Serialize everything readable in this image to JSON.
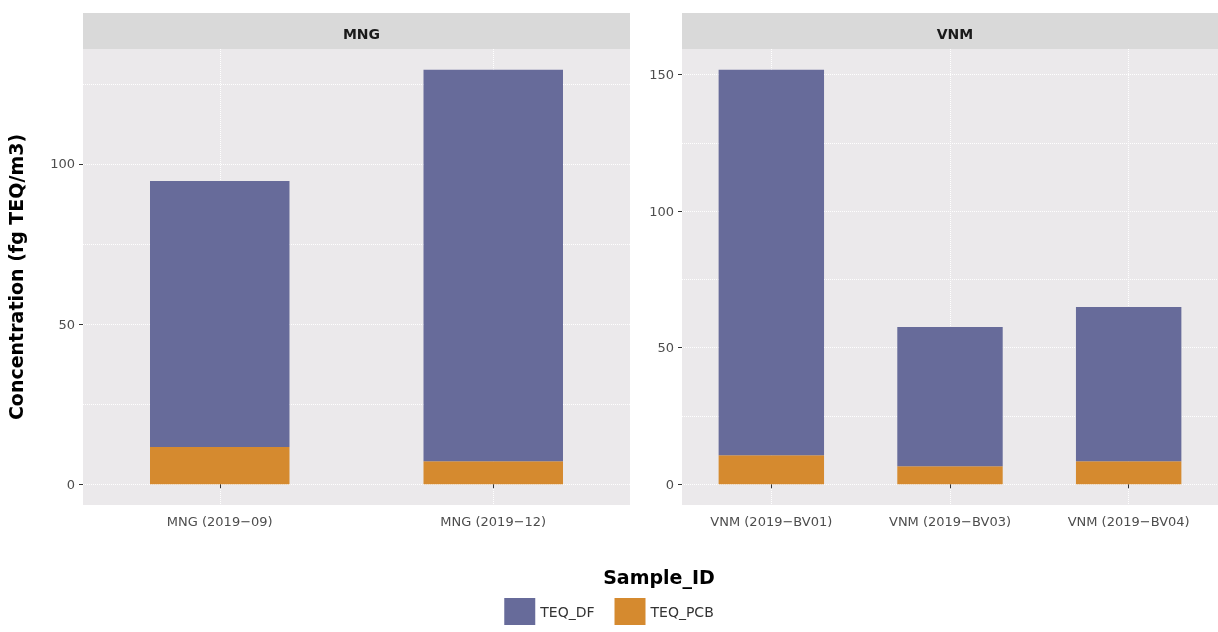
{
  "chart_data": [
    {
      "type": "bar",
      "title": "MNG",
      "ylabel": "Concentration (fg TEQ/m3)",
      "xlabel": "Sample_ID",
      "categories": [
        "MNG (2019−09)",
        "MNG (2019−12)"
      ],
      "stacked": true,
      "series": [
        {
          "name": "TEQ_PCB",
          "color": "#d58a2f",
          "values": [
            11.6,
            7.2
          ]
        },
        {
          "name": "TEQ_DF",
          "color": "#676b9a",
          "values": [
            83.1,
            122.2
          ]
        }
      ],
      "ylim": [
        -6.5,
        135.9
      ],
      "yticks": [
        0,
        {
          "value": 25,
          "label": null
        },
        50,
        {
          "value": 75,
          "label": null
        },
        100,
        {
          "value": 125,
          "label": null
        }
      ],
      "grid": true,
      "legend": "bottom"
    },
    {
      "type": "bar",
      "title": "VNM",
      "categories": [
        "VNM (2019−BV01)",
        "VNM (2019−BV03)",
        "VNM (2019−BV04)"
      ],
      "stacked": true,
      "series": [
        {
          "color": "#d58a2f",
          "values": [
            10.6,
            6.6,
            8.4
          ]
        },
        {
          "color": "#676b9a",
          "values": [
            141.2,
            51.0,
            56.5
          ]
        }
      ],
      "ylim": [
        -7.6,
        159.4
      ],
      "yticks": [
        0,
        {
          "value": 25,
          "label": null
        },
        50,
        {
          "value": 75,
          "label": null
        },
        100,
        {
          "value": 125,
          "label": null
        },
        150
      ],
      "grid": true
    }
  ]
}
